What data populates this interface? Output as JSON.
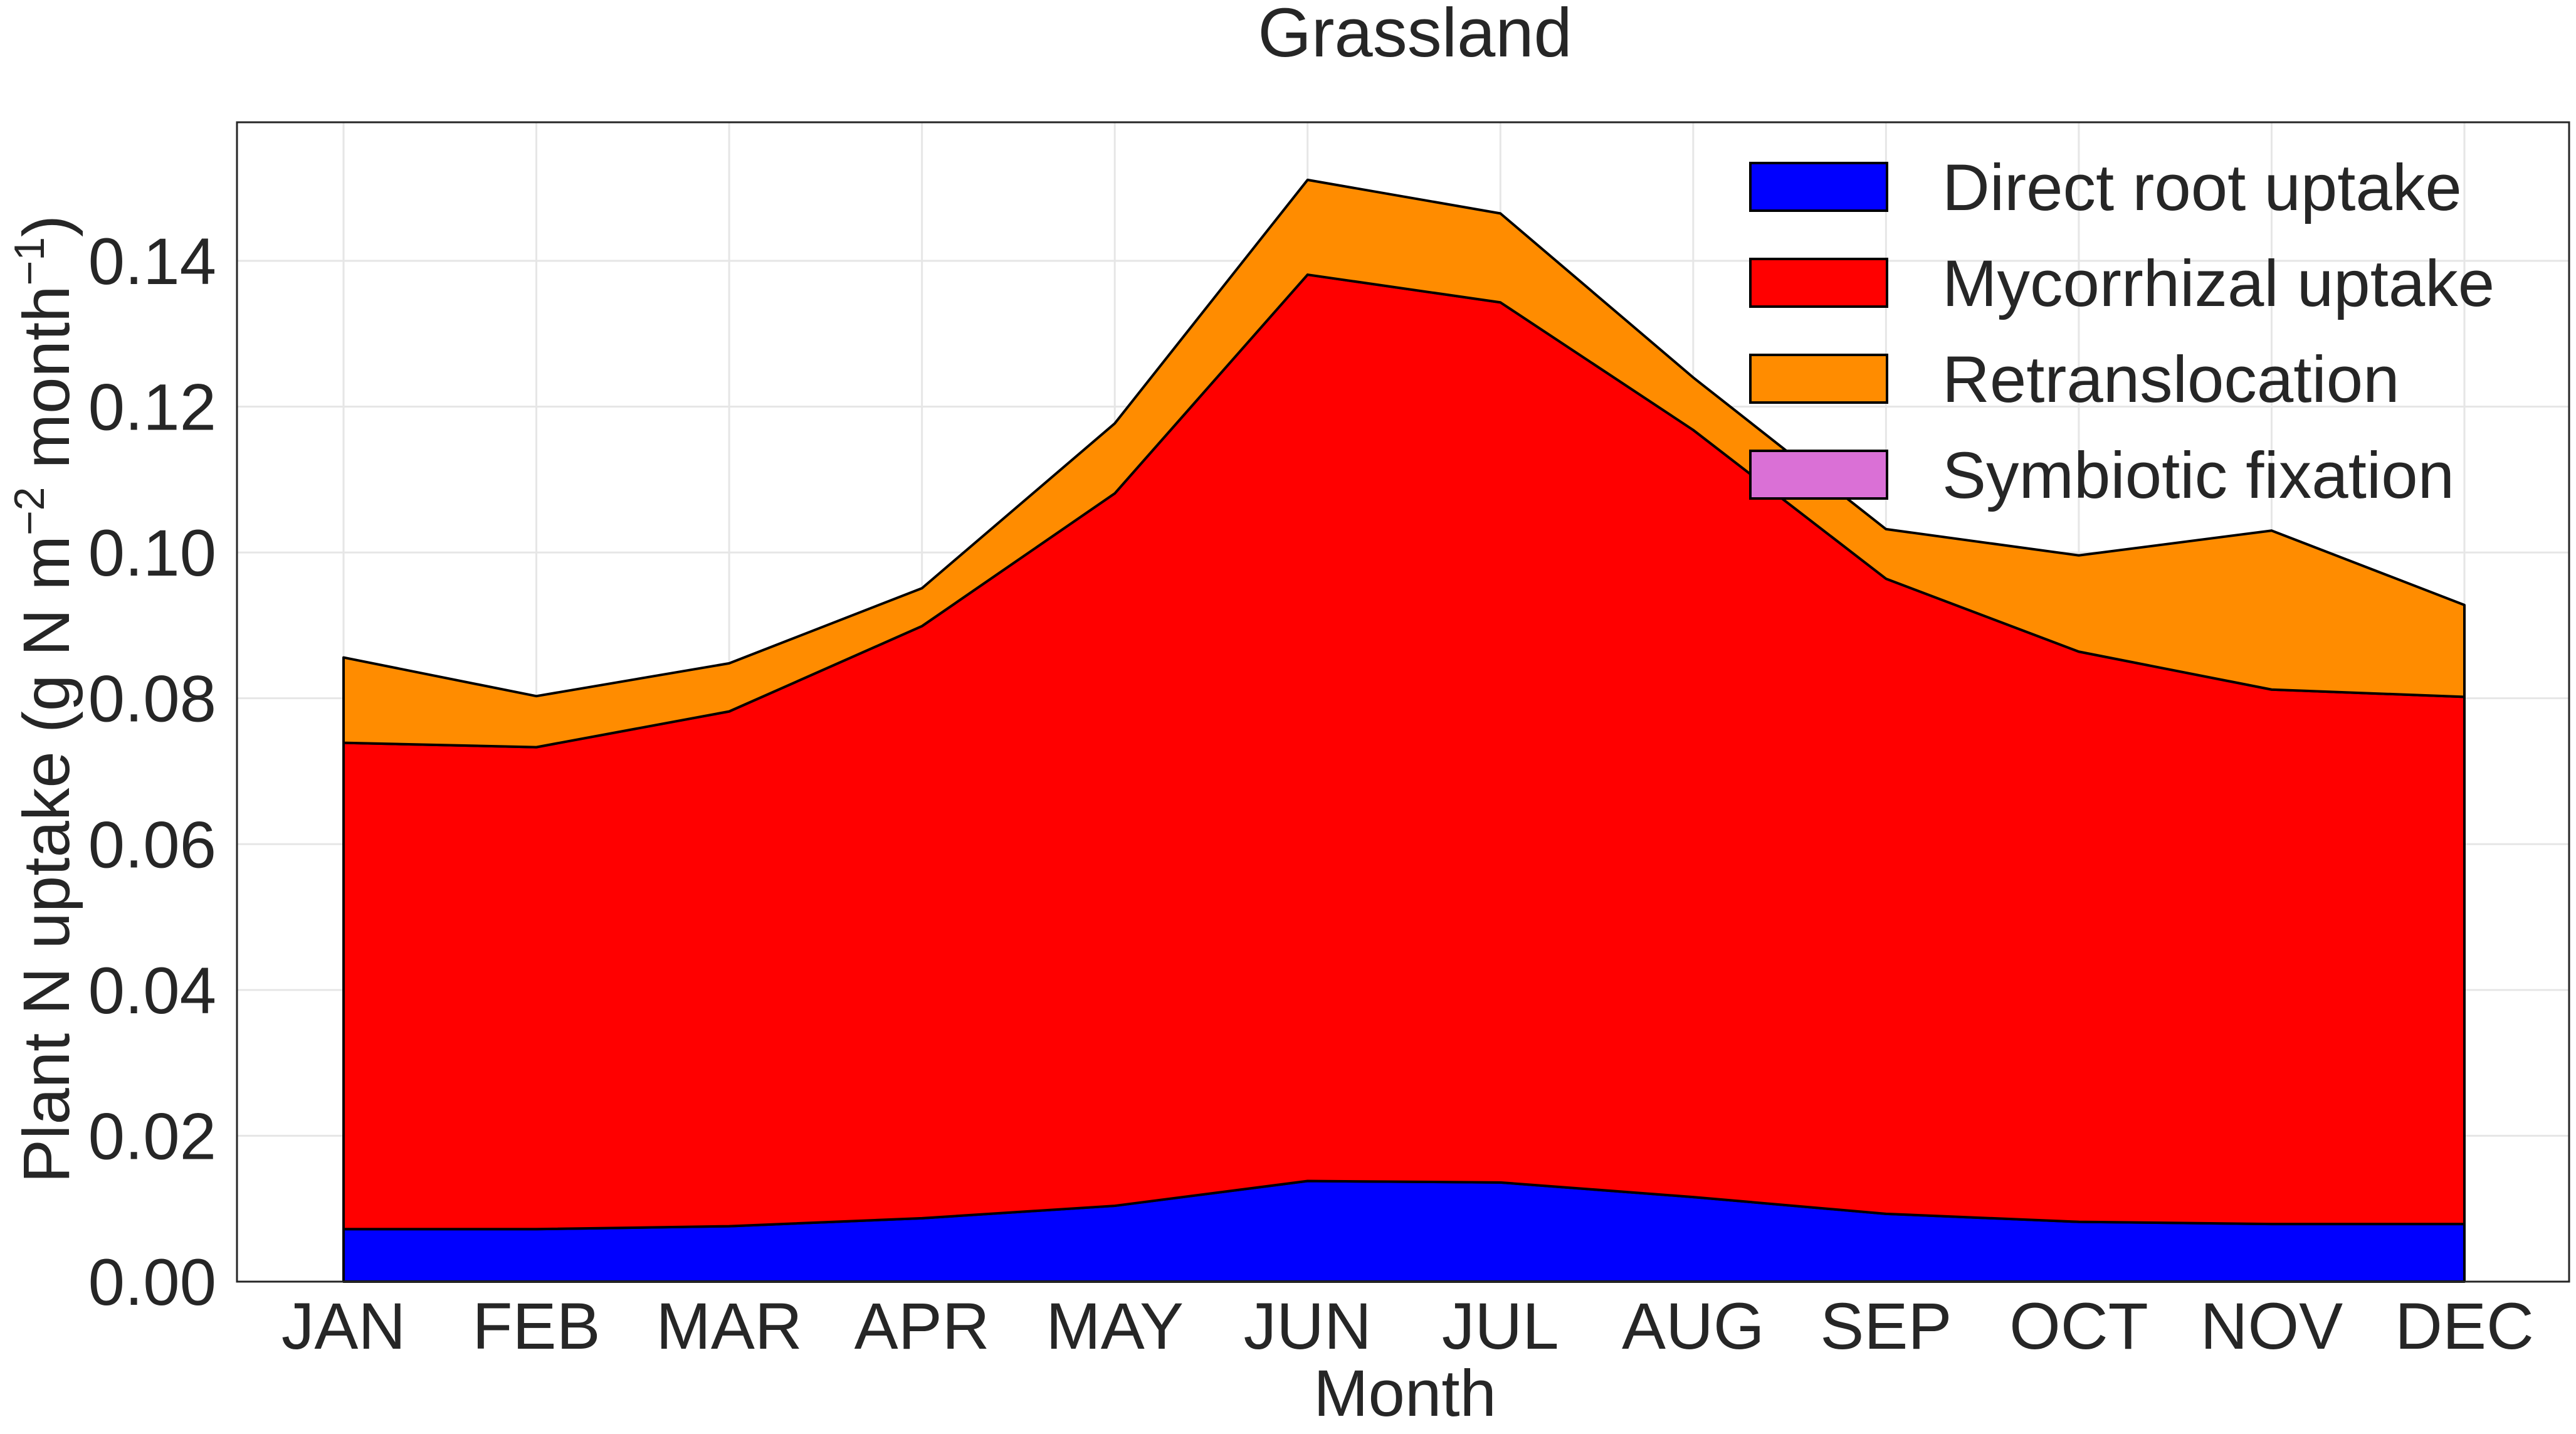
{
  "chart_data": {
    "type": "area",
    "stacked": true,
    "title": "Grassland",
    "xlabel": "Month",
    "ylabel": "Plant N uptake (g N m",
    "ylabel_sup1": "−2",
    "ylabel_mid": " month",
    "ylabel_sup2": "−1",
    "ylabel_end": ")",
    "categories": [
      "JAN",
      "FEB",
      "MAR",
      "APR",
      "MAY",
      "JUN",
      "JUL",
      "AUG",
      "SEP",
      "OCT",
      "NOV",
      "DEC"
    ],
    "ylim": [
      0,
      0.159
    ],
    "yticks": [
      0.0,
      0.02,
      0.04,
      0.06,
      0.08,
      0.1,
      0.12,
      0.14
    ],
    "ytick_labels": [
      "0.00",
      "0.02",
      "0.04",
      "0.06",
      "0.08",
      "0.10",
      "0.12",
      "0.14"
    ],
    "grid": true,
    "legend_position": "top-right",
    "series": [
      {
        "name": "Direct root uptake",
        "color": "#0000ff",
        "values": [
          0.0072,
          0.0072,
          0.0076,
          0.0087,
          0.0104,
          0.0138,
          0.0136,
          0.0116,
          0.0093,
          0.0082,
          0.0079,
          0.0079
        ]
      },
      {
        "name": "Mycorrhizal uptake",
        "color": "#ff0000",
        "values": [
          0.0667,
          0.0661,
          0.0706,
          0.0812,
          0.0977,
          0.1243,
          0.1207,
          0.1052,
          0.0871,
          0.0782,
          0.0733,
          0.0723
        ]
      },
      {
        "name": "Retranslocation",
        "color": "#ff8c00",
        "values": [
          0.0117,
          0.007,
          0.0066,
          0.0052,
          0.0096,
          0.013,
          0.0122,
          0.0072,
          0.0068,
          0.0132,
          0.0218,
          0.0126
        ]
      },
      {
        "name": "Symbiotic fixation",
        "color": "#da70d6",
        "values": [
          0,
          0,
          0,
          0,
          0,
          0,
          0,
          0,
          0,
          0,
          0,
          0
        ]
      }
    ]
  }
}
